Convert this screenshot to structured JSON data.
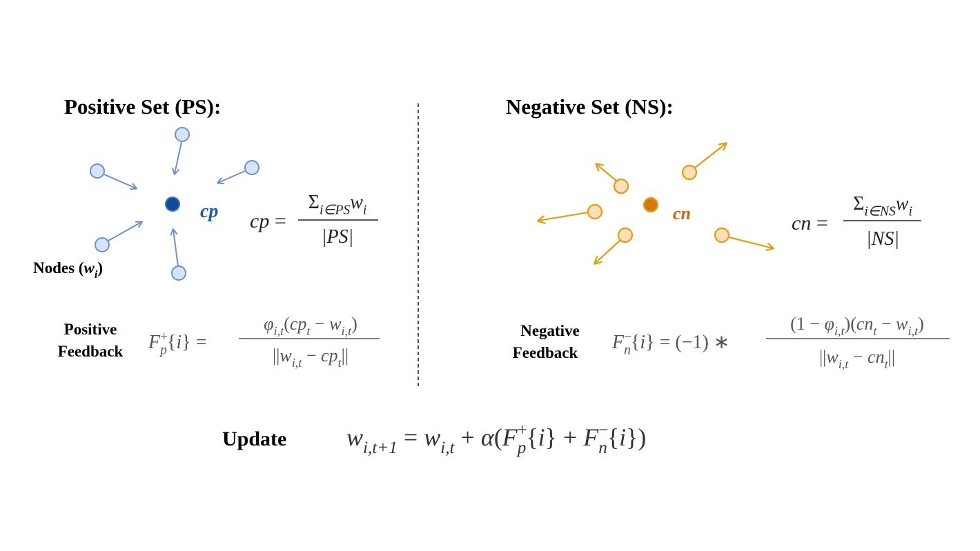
{
  "positive": {
    "title": "Positive Set (PS):",
    "center_label": "cp",
    "nodes_label": [
      {
        "t": "Nodes ("
      },
      {
        "t": "w",
        "it": true
      },
      {
        "t": "i",
        "s": "sub",
        "it": true
      },
      {
        "t": ")"
      }
    ],
    "centroid": {
      "lhs": [
        {
          "t": "cp",
          "it": true
        },
        {
          "t": " = "
        }
      ],
      "num": [
        {
          "t": "Σ"
        },
        {
          "t": "i∈PS",
          "s": "sub",
          "it": true
        },
        {
          "t": "w",
          "it": true
        },
        {
          "t": "i",
          "s": "sub",
          "it": true
        }
      ],
      "den": [
        {
          "t": "|PS|",
          "it": true
        }
      ]
    },
    "feedback_label": [
      "Positive",
      "Feedback"
    ],
    "feedback": {
      "lhs": [
        {
          "t": "F",
          "it": true
        },
        {
          "t": "+",
          "s": "sup"
        },
        {
          "t": "p",
          "s": "sub",
          "it": true
        },
        {
          "t": "{"
        },
        {
          "t": "i",
          "it": true
        },
        {
          "t": "} = "
        }
      ],
      "num": [
        {
          "t": "φ",
          "it": true
        },
        {
          "t": "i,t",
          "s": "sub",
          "it": true
        },
        {
          "t": "("
        },
        {
          "t": "cp",
          "it": true
        },
        {
          "t": "t",
          "s": "sub",
          "it": true
        },
        {
          "t": " − "
        },
        {
          "t": "w",
          "it": true
        },
        {
          "t": "i,t",
          "s": "sub",
          "it": true
        },
        {
          "t": ")"
        }
      ],
      "den": [
        {
          "t": "||"
        },
        {
          "t": "w",
          "it": true
        },
        {
          "t": "i,t",
          "s": "sub",
          "it": true
        },
        {
          "t": " − "
        },
        {
          "t": "cp",
          "it": true
        },
        {
          "t": "t",
          "s": "sub",
          "it": true
        },
        {
          "t": "||"
        }
      ]
    }
  },
  "negative": {
    "title": "Negative Set (NS):",
    "center_label": "cn",
    "centroid": {
      "lhs": [
        {
          "t": "cn",
          "it": true
        },
        {
          "t": " = "
        }
      ],
      "num": [
        {
          "t": "Σ"
        },
        {
          "t": "i∈NS",
          "s": "sub",
          "it": true
        },
        {
          "t": "w",
          "it": true
        },
        {
          "t": "i",
          "s": "sub",
          "it": true
        }
      ],
      "den": [
        {
          "t": "|NS|",
          "it": true
        }
      ]
    },
    "feedback_label": [
      "Negative",
      "Feedback"
    ],
    "feedback": {
      "lhs": [
        {
          "t": "F",
          "it": true
        },
        {
          "t": "−",
          "s": "sup"
        },
        {
          "t": "n",
          "s": "sub",
          "it": true
        },
        {
          "t": "{"
        },
        {
          "t": "i",
          "it": true
        },
        {
          "t": "} = (−1) ∗ "
        }
      ],
      "num": [
        {
          "t": "(1 − "
        },
        {
          "t": "φ",
          "it": true
        },
        {
          "t": "i,t",
          "s": "sub",
          "it": true
        },
        {
          "t": ")("
        },
        {
          "t": "cn",
          "it": true
        },
        {
          "t": "t",
          "s": "sub",
          "it": true
        },
        {
          "t": " − "
        },
        {
          "t": "w",
          "it": true
        },
        {
          "t": "i,t",
          "s": "sub",
          "it": true
        },
        {
          "t": ")"
        }
      ],
      "den": [
        {
          "t": "||"
        },
        {
          "t": "w",
          "it": true
        },
        {
          "t": "i,t",
          "s": "sub",
          "it": true
        },
        {
          "t": " − "
        },
        {
          "t": "cn",
          "it": true
        },
        {
          "t": "t",
          "s": "sub",
          "it": true
        },
        {
          "t": "||"
        }
      ]
    }
  },
  "update": {
    "label": "Update",
    "formula": [
      {
        "t": "w",
        "it": true
      },
      {
        "t": "i,t+1",
        "s": "sub",
        "it": true
      },
      {
        "t": " = "
      },
      {
        "t": "w",
        "it": true
      },
      {
        "t": "i,t",
        "s": "sub",
        "it": true
      },
      {
        "t": " + "
      },
      {
        "t": "α",
        "it": true
      },
      {
        "t": "("
      },
      {
        "t": "F",
        "it": true
      },
      {
        "t": "+",
        "s": "sup"
      },
      {
        "t": "p",
        "s": "sub",
        "it": true
      },
      {
        "t": "{"
      },
      {
        "t": "i",
        "it": true
      },
      {
        "t": "} + "
      },
      {
        "t": "F",
        "it": true
      },
      {
        "t": "−",
        "s": "sup"
      },
      {
        "t": "n",
        "s": "sub",
        "it": true
      },
      {
        "t": "{"
      },
      {
        "t": "i",
        "it": true
      },
      {
        "t": "})"
      }
    ]
  }
}
